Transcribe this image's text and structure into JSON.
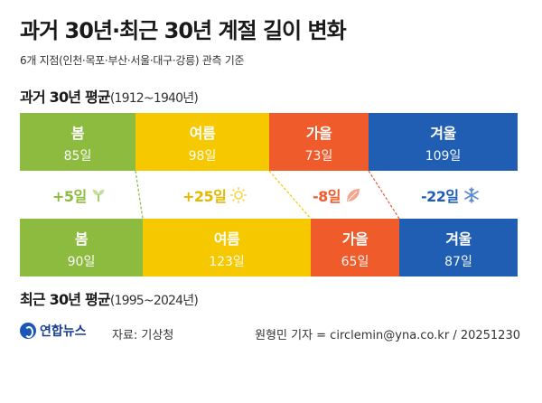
{
  "title": "과거 30년·최근 30년 계절 길이 변화",
  "subtitle": "6개 지점(인천·목포·부산·서울·대구·강릉) 관측 기준",
  "past_label": "과거 30년 평균",
  "past_years": "(1912~1940년)",
  "recent_label": "최근 30년 평균",
  "recent_years": "(1995~2024년)",
  "logo_text": "연합뉴스",
  "source": "자료: 기상청",
  "credit": "원형민 기자 = circlemin@yna.co.kr / 20251230",
  "colors": {
    "spring": "#8dbb3f",
    "summer": "#f5c800",
    "autumn": "#ef5b2b",
    "winter": "#1f5eb3"
  },
  "chart_data": {
    "type": "bar",
    "categories": [
      "봄",
      "여름",
      "가을",
      "겨울"
    ],
    "series": [
      {
        "name": "과거 30년 평균",
        "values": [
          85,
          98,
          73,
          109
        ]
      },
      {
        "name": "최근 30년 평균",
        "values": [
          90,
          123,
          65,
          87
        ]
      }
    ],
    "unit": "일",
    "past_labels": [
      "85일",
      "98일",
      "73일",
      "109일"
    ],
    "recent_labels": [
      "90일",
      "123일",
      "65일",
      "87일"
    ],
    "changes": [
      "+5일",
      "+25일",
      "-8일",
      "-22일"
    ],
    "change_icons": [
      "sprout-icon",
      "sun-icon",
      "leaf-icon",
      "snowflake-icon"
    ]
  }
}
